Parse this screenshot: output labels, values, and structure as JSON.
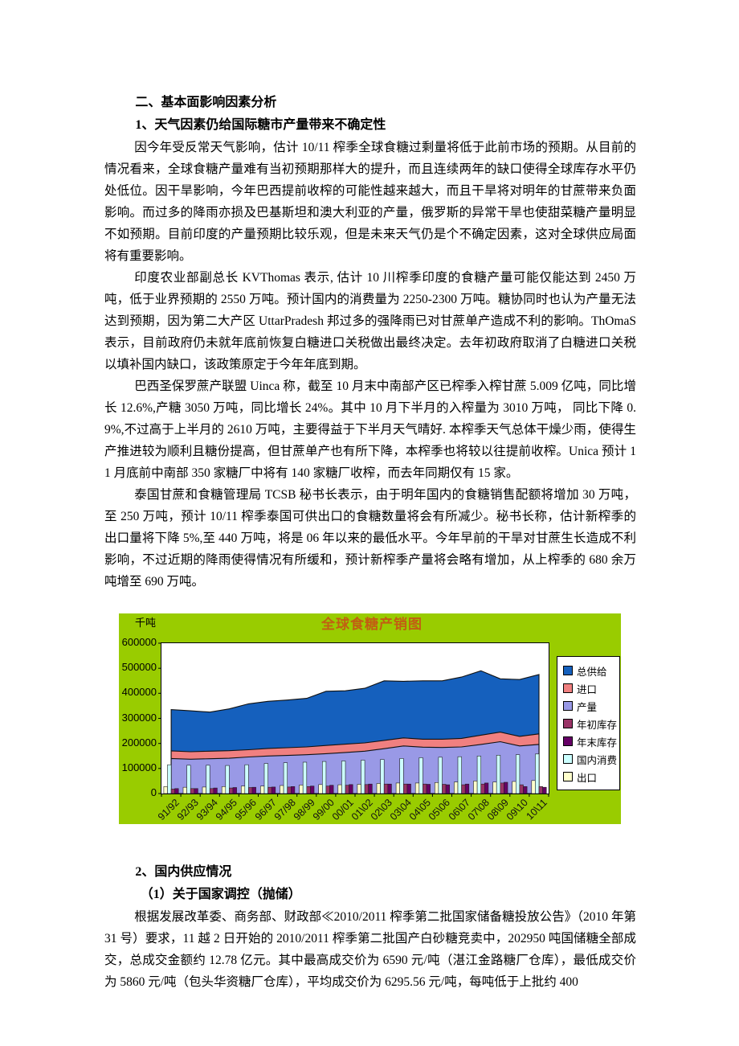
{
  "document": {
    "section_heading": "二、基本面影响因素分析",
    "sub_heading_1": "1、天气因素仍给国际糖市产量带来不确定性",
    "paragraphs_1": [
      "因今年受反常天气影响，估计 10/11 榨季全球食糖过剩量将低于此前市场的预期。从目前的情况看来，全球食糖产量难有当初预期那样大的提升，而且连续两年的缺口使得全球库存水平仍处低位。因干旱影响，今年巴西提前收榨的可能性越来越大，而且干旱将对明年的甘蔗带来负面影响。而过多的降雨亦损及巴基斯坦和澳大利亚的产量，俄罗斯的异常干旱也使甜菜糖产量明显不如预期。目前印度的产量预期比较乐观，但是未来天气仍是个不确定因素，这对全球供应局面将有重要影响。",
      "印度农业部副总长 KVThomas 表示, 估计 10 川榨季印度的食糖产量可能仅能达到 2450 万吨，低于业界预期的 2550 万吨。预计国内的消费量为 2250-2300 万吨。糖协同时也认为产量无法达到预期，因为第二大产区 UttarPradesh 邦过多的强降雨已对甘蔗单产造成不利的影响。ThOmaS 表示，目前政府仍未就年底前恢复白糖进口关税做出最终决定。去年初政府取消了白糖进口关税以填补国内缺口，该政策原定于今年年底到期。",
      "巴西圣保罗蔗产联盟 Uinca 称，截至 10 月末中南部产区已榨季入榨甘蔗 5.009 亿吨，同比增长 12.6%,产糖 3050 万吨，同比增长 24%。其中 10 月下半月的入榨量为 3010 万吨， 同比下降 0.9%,不过高于上半月的 2610 万吨，主要得益于下半月天气晴好. 本榨季天气总体干燥少雨，使得生产推进较为顺利且糖份提高，但甘蔗单产也有所下降，本榨季也将较以往提前收榨。Unica 预计 11 月底前中南部 350 家糖厂中将有 140 家糖厂收榨，而去年同期仅有 15 家。",
      "泰国甘蔗和食糖管理局 TCSB 秘书长表示，由于明年国内的食糖销售配额将增加 30 万吨，至 250 万吨，预计 10/11 榨季泰国可供出口的食糖数量将会有所减少。秘书长称，估计新榨季的出口量将下降 5%,至 440 万吨，将是 06 年以来的最低水平。今年早前的干旱对甘蔗生长造成不利影响，不过近期的降雨使得情况有所缓和，预计新榨季产量将会略有增加，从上榨季的 680 余万吨增至 690 万吨。"
    ],
    "sub_heading_2": "2、国内供应情况",
    "sub_heading_2_1": "（1）关于国家调控（抛储）",
    "paragraph_2": "根据发展改革委、商务部、财政部≪2010/2011 榨季第二批国家储备糖投放公告》（2010 年第 31 号）要求，11 越 2 日开始的 2010/2011 榨季第二批国产白砂糖竞卖中，202950 吨国储糖全部成交，总成交金额约 12.78 亿元。其中最高成交价为 6590 元/吨（湛江金路糖厂仓库），最低成交价为 5860 元/吨（包头华资糖厂仓库），平均成交价为 6295.56 元/吨，每吨低于上批约 400"
  },
  "chart_data": {
    "type": "area",
    "title": "全球食糖产销图",
    "ylabel": "千吨",
    "xlabel": "",
    "ylim": [
      0,
      600000
    ],
    "ytick_interval": 100000,
    "grid": false,
    "legend_position": "right",
    "chart_bg": "#99CC00",
    "plot_bg": "#FFFFFF",
    "categories": [
      "91/92",
      "92/93",
      "93/94",
      "94/95",
      "95/96",
      "96/97",
      "97/98",
      "98/99",
      "99/00",
      "00/01",
      "01\\02",
      "02\\03",
      "03\\04",
      "04\\05",
      "05\\06",
      "06\\07",
      "07\\08",
      "08\\09",
      "09\\10",
      "10\\11"
    ],
    "series": [
      {
        "name": "总供给",
        "type": "area",
        "color": "#1560BD",
        "values": [
          335000,
          330000,
          325000,
          338000,
          358000,
          368000,
          373000,
          380000,
          408000,
          410000,
          420000,
          450000,
          448000,
          450000,
          450000,
          465000,
          490000,
          458000,
          455000,
          475000
        ]
      },
      {
        "name": "进口",
        "type": "area",
        "color": "#F08080",
        "values": [
          170000,
          167000,
          169000,
          171000,
          175000,
          180000,
          183000,
          186000,
          192000,
          197000,
          202000,
          212000,
          222000,
          217000,
          217000,
          220000,
          233000,
          245000,
          228000,
          238000
        ]
      },
      {
        "name": "产量",
        "type": "area",
        "color": "#9999E6",
        "values": [
          140000,
          137000,
          139000,
          141000,
          146000,
          150000,
          152000,
          155000,
          159000,
          164000,
          169000,
          179000,
          190000,
          185000,
          184000,
          186000,
          196000,
          207000,
          190000,
          196000
        ]
      },
      {
        "name": "年初库存",
        "type": "bar",
        "color": "#993366",
        "values": [
          18000,
          20000,
          20000,
          22000,
          24000,
          25000,
          26000,
          28000,
          30000,
          33000,
          36000,
          38000,
          38000,
          38000,
          37000,
          35000,
          38000,
          42000,
          35000,
          28000
        ]
      },
      {
        "name": "年末库存",
        "type": "bar",
        "color": "#660066",
        "values": [
          20000,
          20000,
          22000,
          24000,
          25000,
          26000,
          28000,
          30000,
          33000,
          36000,
          38000,
          38000,
          38000,
          37000,
          35000,
          38000,
          42000,
          45000,
          28000,
          25000
        ]
      },
      {
        "name": "国内消费",
        "type": "bar",
        "color": "#CCFFFF",
        "values": [
          115000,
          113000,
          113000,
          112000,
          115000,
          120000,
          123000,
          125000,
          128000,
          130000,
          133000,
          136000,
          140000,
          143000,
          145000,
          147000,
          150000,
          153000,
          155000,
          158000
        ]
      },
      {
        "name": "出口",
        "type": "bar",
        "color": "#FFFFCC",
        "values": [
          28000,
          25000,
          26000,
          28000,
          30000,
          30000,
          32000,
          34000,
          36000,
          35000,
          37000,
          40000,
          42000,
          42000,
          44000,
          46000,
          50000,
          46000,
          48000,
          52000
        ]
      }
    ],
    "bar_cluster_order": [
      "出口",
      "国内消费",
      "年初库存",
      "年末库存"
    ],
    "note": "area series values are the plotted top-line totals read from the axis"
  }
}
